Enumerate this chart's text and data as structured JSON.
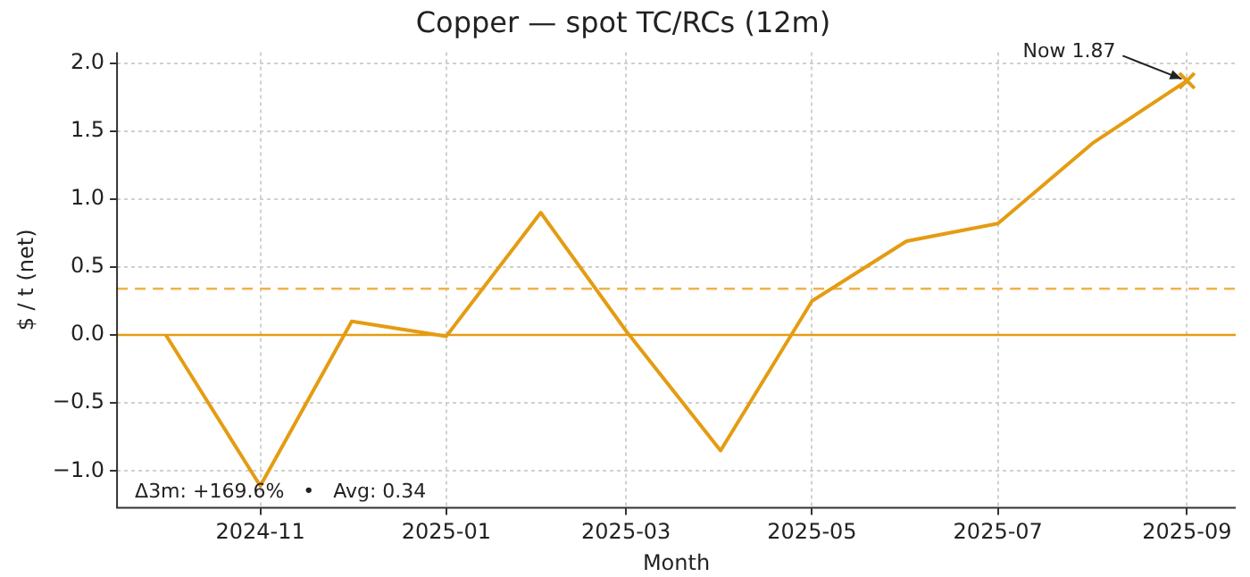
{
  "chart_data": {
    "type": "line",
    "title": "Copper — spot TC/RCs (12m)",
    "xlabel": "Month",
    "ylabel": "$ / t (net)",
    "x": [
      "2024-10",
      "2024-11",
      "2024-12",
      "2025-01",
      "2025-02",
      "2025-03",
      "2025-04",
      "2025-05",
      "2025-06",
      "2025-07",
      "2025-08",
      "2025-09"
    ],
    "series": [
      {
        "color": "#e49c12",
        "marker": "none",
        "values": [
          0.0,
          -1.11,
          0.1,
          -0.01,
          0.9,
          0.03,
          -0.85,
          0.25,
          0.69,
          0.82,
          1.41,
          1.87
        ]
      },
      {
        "type": "scatter",
        "color": "#e49c12",
        "marker": "cross",
        "x": [
          "2025-09"
        ],
        "values": [
          1.87
        ]
      }
    ],
    "xlim": [
      "2024-09-15",
      "2025-09-17"
    ],
    "xticks": [
      "2024-11",
      "2025-01",
      "2025-03",
      "2025-05",
      "2025-07",
      "2025-09"
    ],
    "ylim": [
      -1.27,
      2.08
    ],
    "yticks": [
      {
        "value": -1,
        "label": "−1.0"
      },
      {
        "value": -0.5,
        "label": "−0.5"
      },
      {
        "value": 0,
        "label": "0.0"
      },
      {
        "value": 0.5,
        "label": "0.5"
      },
      {
        "value": 1,
        "label": "1.0"
      },
      {
        "value": 1.5,
        "label": "1.5"
      },
      {
        "value": 2,
        "label": "2.0"
      }
    ],
    "ref_lines": [
      {
        "axis": "y",
        "value": 0,
        "color": "#e49c12",
        "line_style": "solid"
      },
      {
        "axis": "y",
        "value": 0.34,
        "color": "#f0b24a",
        "line_style": "dashed"
      }
    ],
    "annotations": [
      {
        "text": "Now 1.87",
        "x": "2025-09",
        "y": 1.87
      },
      "Δ3m: +169.6%   •   Avg: 0.34"
    ],
    "grid": true,
    "legend": false
  }
}
